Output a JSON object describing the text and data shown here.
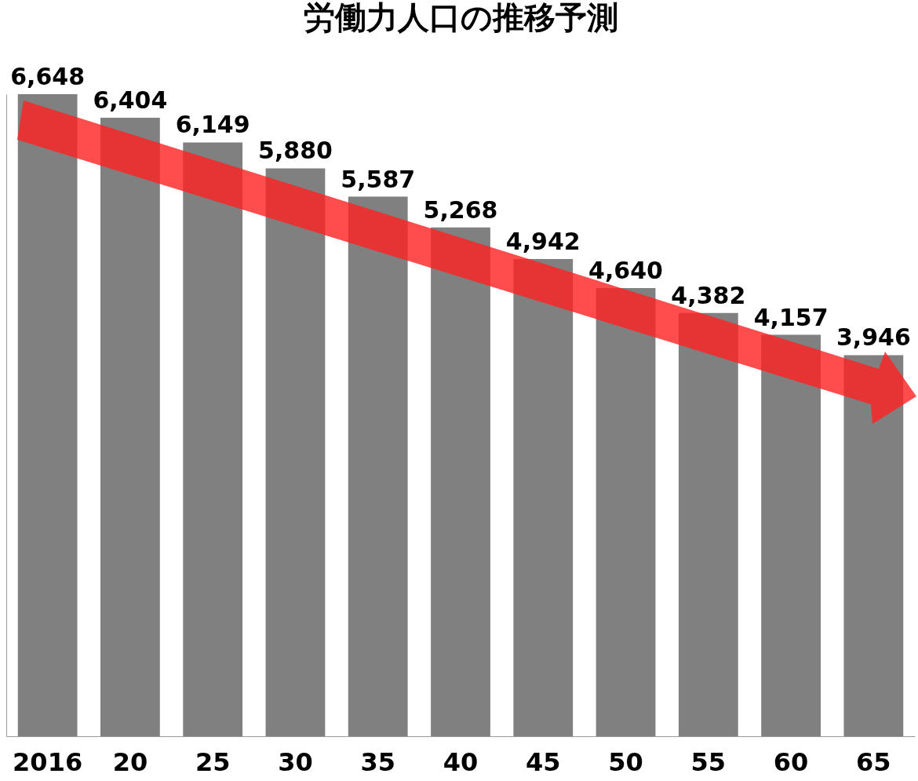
{
  "chart_data": {
    "type": "bar",
    "title": "労働力人口の推移予測",
    "categories": [
      "2016",
      "20",
      "25",
      "30",
      "35",
      "40",
      "45",
      "50",
      "55",
      "60",
      "65"
    ],
    "values": [
      6648,
      6404,
      6149,
      5880,
      5587,
      5268,
      4942,
      4640,
      4382,
      4157,
      3946
    ],
    "value_labels": [
      "6,648",
      "6,404",
      "6,149",
      "5,880",
      "5,587",
      "5,268",
      "4,942",
      "4,640",
      "4,382",
      "4,157",
      "3,946"
    ],
    "color": "#808080",
    "grid": false,
    "tick_labels": "x"
  }
}
